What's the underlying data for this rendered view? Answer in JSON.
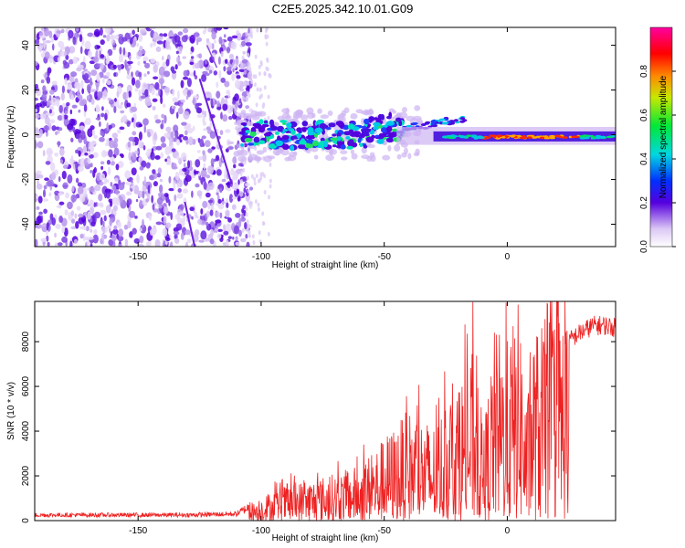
{
  "title": "C2E5.2025.342.10.01.G09",
  "chart_data": [
    {
      "type": "heatmap",
      "name": "spectrogram",
      "xlabel": "Height of straight line (km)",
      "ylabel": "Frequency (Hz)",
      "xlim": [
        -192,
        44
      ],
      "ylim": [
        -50,
        48
      ],
      "xticks": [
        -150,
        -100,
        -50,
        0
      ],
      "yticks": [
        -40,
        -20,
        0,
        20,
        40
      ],
      "colorbar": {
        "label": "Normalized spectral amplitude",
        "range": [
          0,
          1
        ],
        "ticks": [
          0.0,
          0.2,
          0.4,
          0.6,
          0.8
        ]
      },
      "regions": [
        {
          "desc": "diffuse noise",
          "x_range": [
            -192,
            -105
          ],
          "f_range": [
            -50,
            48
          ],
          "amplitude": 0.05
        },
        {
          "desc": "ionospheric scatter blob",
          "x_range": [
            -105,
            -45
          ],
          "f_range": [
            -10,
            10
          ],
          "amplitude": 0.35
        },
        {
          "desc": "signal line",
          "x_range": [
            -45,
            44
          ],
          "f_range": [
            -3,
            3
          ],
          "amplitude": 0.85
        }
      ],
      "grid": false
    },
    {
      "type": "line",
      "name": "snr",
      "xlabel": "Height of straight line (km)",
      "ylabel": "SNR (10 * v/v)",
      "xlim": [
        -192,
        44
      ],
      "ylim": [
        0,
        9800
      ],
      "xticks": [
        -150,
        -100,
        -50,
        0
      ],
      "yticks": [
        0,
        2000,
        4000,
        6000,
        8000
      ],
      "color": "#ee2222",
      "envelope": {
        "x": [
          -192,
          -160,
          -130,
          -110,
          -100,
          -90,
          -80,
          -70,
          -60,
          -50,
          -40,
          -30,
          -20,
          -12,
          -10,
          -5,
          0,
          5,
          8,
          10,
          15,
          20,
          25,
          30,
          35,
          40,
          44
        ],
        "y": [
          250,
          250,
          250,
          300,
          900,
          1300,
          1500,
          1700,
          2000,
          3000,
          4000,
          3500,
          5000,
          6500,
          3000,
          7000,
          6500,
          8000,
          4000,
          6800,
          7200,
          7800,
          8200,
          8600,
          8900,
          8900,
          8800
        ]
      }
    }
  ]
}
